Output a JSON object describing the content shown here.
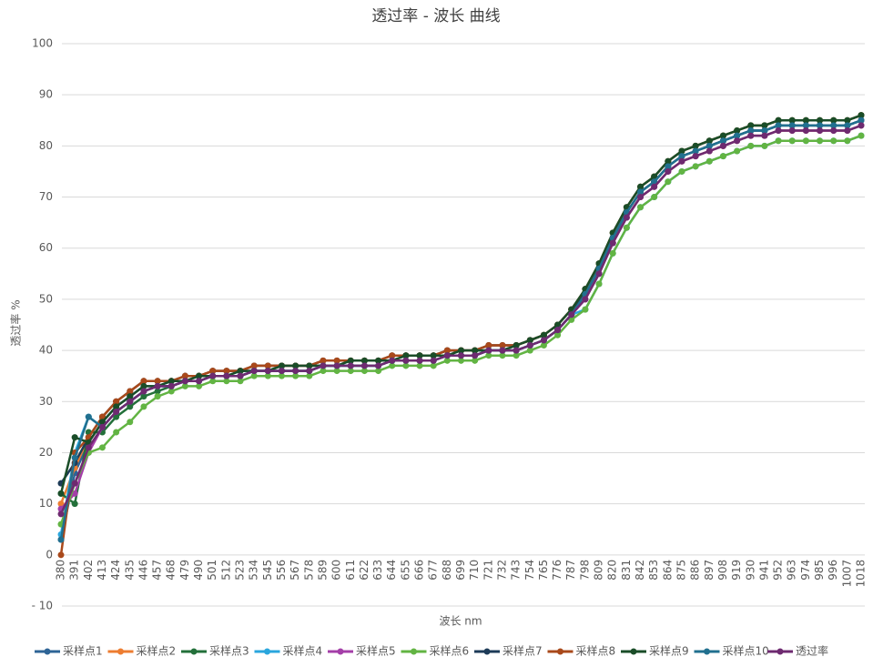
{
  "chart_data": {
    "type": "line",
    "title": "透过率 - 波长 曲线",
    "x_label": "波长    nm",
    "y_label": "透过率 %",
    "categories": [
      "380",
      "391",
      "402",
      "413",
      "424",
      "435",
      "446",
      "457",
      "468",
      "479",
      "490",
      "501",
      "512",
      "523",
      "534",
      "545",
      "556",
      "567",
      "578",
      "589",
      "600",
      "611",
      "622",
      "633",
      "644",
      "655",
      "666",
      "677",
      "688",
      "699",
      "710",
      "721",
      "732",
      "743",
      "754",
      "765",
      "776",
      "787",
      "798",
      "809",
      "820",
      "831",
      "842",
      "853",
      "864",
      "875",
      "886",
      "897",
      "908",
      "919",
      "930",
      "941",
      "952",
      "963",
      "974",
      "985",
      "996",
      "1007",
      "1018"
    ],
    "ylim": [
      -10,
      100
    ],
    "yticks": [
      {
        "value": -10,
        "label": "- 10"
      },
      0,
      10,
      20,
      30,
      40,
      50,
      60,
      70,
      80,
      90,
      100
    ],
    "grid": true,
    "series": [
      {
        "name": "采样点1",
        "color": "#2e6496",
        "values": [
          3,
          16,
          22,
          26,
          29,
          31,
          33,
          33,
          34,
          34,
          35,
          35,
          35,
          36,
          36,
          36,
          37,
          37,
          37,
          37,
          37,
          38,
          38,
          38,
          38,
          39,
          39,
          39,
          39,
          40,
          40,
          40,
          40,
          41,
          42,
          43,
          45,
          48,
          51,
          56,
          62,
          67,
          71,
          73,
          76,
          78,
          79,
          80,
          81,
          82,
          83,
          83,
          84,
          84,
          84,
          84,
          84,
          84,
          85
        ]
      },
      {
        "name": "采样点2",
        "color": "#ed7d31",
        "values": [
          10,
          17,
          23,
          27,
          30,
          32,
          34,
          34,
          34,
          35,
          35,
          36,
          36,
          36,
          37,
          37,
          37,
          37,
          37,
          38,
          38,
          38,
          38,
          38,
          39,
          39,
          39,
          39,
          40,
          40,
          40,
          41,
          41,
          41,
          42,
          43,
          45,
          48,
          50,
          55,
          61,
          66,
          70,
          72,
          75,
          77,
          78,
          79,
          80,
          81,
          82,
          82,
          83,
          83,
          83,
          83,
          83,
          83,
          84
        ]
      },
      {
        "name": "采样点3",
        "color": "#23703a",
        "values": [
          12,
          10,
          24,
          24,
          27,
          29,
          31,
          32,
          33,
          34,
          34,
          35,
          35,
          35,
          36,
          36,
          36,
          36,
          36,
          37,
          37,
          37,
          37,
          37,
          38,
          38,
          38,
          38,
          39,
          39,
          39,
          40,
          40,
          40,
          41,
          42,
          44,
          47,
          52,
          57,
          63,
          68,
          72,
          74,
          77,
          79,
          80,
          81,
          82,
          83,
          84,
          84,
          85,
          85,
          85,
          85,
          85,
          85,
          86
        ]
      },
      {
        "name": "采样点4",
        "color": "#2aa6dd",
        "values": [
          4,
          20,
          27,
          25,
          28,
          30,
          32,
          33,
          33,
          34,
          34,
          35,
          35,
          35,
          36,
          36,
          36,
          36,
          36,
          37,
          37,
          37,
          37,
          37,
          38,
          38,
          38,
          38,
          39,
          39,
          39,
          40,
          40,
          40,
          41,
          42,
          44,
          47,
          48,
          53,
          59,
          64,
          68,
          70,
          73,
          75,
          76,
          77,
          78,
          79,
          80,
          80,
          81,
          81,
          81,
          81,
          81,
          81,
          82
        ]
      },
      {
        "name": "采样点5",
        "color": "#a43fa8",
        "values": [
          9,
          12,
          20,
          25,
          28,
          30,
          32,
          33,
          33,
          34,
          34,
          35,
          35,
          35,
          36,
          36,
          36,
          36,
          36,
          37,
          37,
          37,
          37,
          37,
          38,
          38,
          38,
          38,
          39,
          39,
          39,
          40,
          40,
          40,
          41,
          42,
          44,
          47,
          50,
          55,
          61,
          66,
          70,
          72,
          75,
          77,
          78,
          79,
          80,
          81,
          82,
          82,
          83,
          83,
          83,
          83,
          83,
          83,
          84
        ]
      },
      {
        "name": "采样点6",
        "color": "#62b443",
        "values": [
          6,
          14,
          20,
          21,
          24,
          26,
          29,
          31,
          32,
          33,
          33,
          34,
          34,
          34,
          35,
          35,
          35,
          35,
          35,
          36,
          36,
          36,
          36,
          36,
          37,
          37,
          37,
          37,
          38,
          38,
          38,
          39,
          39,
          39,
          40,
          41,
          43,
          46,
          48,
          53,
          59,
          64,
          68,
          70,
          73,
          75,
          76,
          77,
          78,
          79,
          80,
          80,
          81,
          81,
          81,
          81,
          81,
          81,
          82
        ]
      },
      {
        "name": "采样点7",
        "color": "#1d3b58",
        "values": [
          14,
          18,
          23,
          27,
          30,
          32,
          34,
          34,
          34,
          35,
          35,
          36,
          36,
          36,
          37,
          37,
          37,
          37,
          37,
          38,
          38,
          38,
          38,
          38,
          39,
          39,
          39,
          39,
          40,
          40,
          40,
          41,
          41,
          41,
          42,
          43,
          45,
          48,
          51,
          56,
          62,
          67,
          71,
          73,
          76,
          78,
          79,
          80,
          81,
          82,
          83,
          83,
          84,
          84,
          84,
          84,
          84,
          84,
          85
        ]
      },
      {
        "name": "采样点8",
        "color": "#a9491b",
        "values": [
          0,
          20,
          23,
          27,
          30,
          32,
          34,
          34,
          34,
          35,
          35,
          36,
          36,
          36,
          37,
          37,
          37,
          37,
          37,
          38,
          38,
          38,
          38,
          38,
          39,
          39,
          39,
          39,
          40,
          40,
          40,
          41,
          41,
          41,
          42,
          43,
          45,
          48,
          52,
          57,
          63,
          68,
          72,
          74,
          77,
          79,
          80,
          81,
          82,
          83,
          84,
          84,
          85,
          85,
          85,
          85,
          85,
          85,
          86
        ]
      },
      {
        "name": "采样点9",
        "color": "#1a4d28",
        "values": [
          12,
          23,
          22,
          26,
          29,
          31,
          33,
          33,
          34,
          34,
          35,
          35,
          35,
          36,
          36,
          36,
          37,
          37,
          37,
          37,
          37,
          38,
          38,
          38,
          38,
          39,
          39,
          39,
          39,
          40,
          40,
          40,
          40,
          41,
          42,
          43,
          45,
          48,
          52,
          57,
          63,
          68,
          72,
          74,
          77,
          79,
          80,
          81,
          82,
          83,
          84,
          84,
          85,
          85,
          85,
          85,
          85,
          85,
          86
        ]
      },
      {
        "name": "采样点10",
        "color": "#21708f",
        "values": [
          3,
          19,
          27,
          25,
          28,
          30,
          32,
          33,
          33,
          34,
          34,
          35,
          35,
          35,
          36,
          36,
          36,
          36,
          36,
          37,
          37,
          37,
          37,
          37,
          38,
          38,
          38,
          38,
          39,
          39,
          39,
          40,
          40,
          40,
          41,
          42,
          44,
          47,
          51,
          56,
          62,
          67,
          71,
          73,
          76,
          78,
          79,
          80,
          81,
          82,
          83,
          83,
          84,
          84,
          84,
          84,
          84,
          84,
          85
        ]
      },
      {
        "name": "透过率",
        "color": "#6e2a70",
        "values": [
          8,
          14,
          21,
          25,
          28,
          30,
          32,
          33,
          33,
          34,
          34,
          35,
          35,
          35,
          36,
          36,
          36,
          36,
          36,
          37,
          37,
          37,
          37,
          37,
          38,
          38,
          38,
          38,
          39,
          39,
          39,
          40,
          40,
          40,
          41,
          42,
          44,
          47,
          50,
          55,
          61,
          66,
          70,
          72,
          75,
          77,
          78,
          79,
          80,
          81,
          82,
          82,
          83,
          83,
          83,
          83,
          83,
          83,
          84
        ]
      }
    ]
  }
}
